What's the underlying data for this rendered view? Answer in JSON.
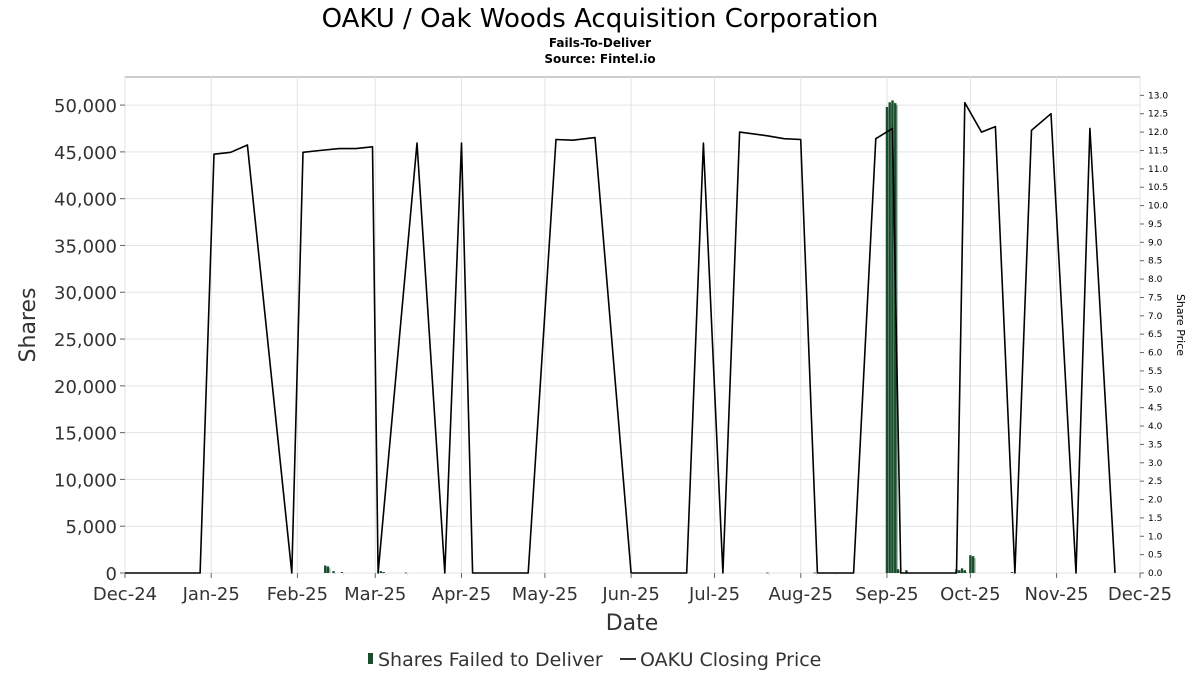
{
  "chart_data": {
    "type": "bar",
    "title": "OAKU / Oak Woods Acquisition Corporation",
    "subtitle": "Fails-To-Deliver",
    "source": "Source: Fintel.io",
    "xlabel": "Date",
    "ylabel": "Shares",
    "y2label": "Share Price",
    "xlim": [
      "2024-12-01",
      "2025-12-01"
    ],
    "ylim": [
      0,
      53000
    ],
    "y2lim": [
      0,
      13.5
    ],
    "x_ticks": [
      "Dec-24",
      "Jan-25",
      "Feb-25",
      "Mar-25",
      "Apr-25",
      "May-25",
      "Jun-25",
      "Jul-25",
      "Aug-25",
      "Sep-25",
      "Oct-25",
      "Nov-25",
      "Dec-25"
    ],
    "x_tick_dates": [
      "2024-12-01",
      "2025-01-01",
      "2025-02-01",
      "2025-03-01",
      "2025-04-01",
      "2025-05-01",
      "2025-06-01",
      "2025-07-01",
      "2025-08-01",
      "2025-09-01",
      "2025-10-01",
      "2025-11-01",
      "2025-12-01"
    ],
    "y_ticks": [
      0,
      5000,
      10000,
      15000,
      20000,
      25000,
      30000,
      35000,
      40000,
      45000,
      50000
    ],
    "y_tick_labels": [
      "0",
      "5,000",
      "10,000",
      "15,000",
      "20,000",
      "25,000",
      "30,000",
      "35,000",
      "40,000",
      "45,000",
      "50,000"
    ],
    "y2_ticks": [
      0,
      0.5,
      1,
      1.5,
      2,
      2.5,
      3,
      3.5,
      4,
      4.5,
      5,
      5.5,
      6,
      6.5,
      7,
      7.5,
      8,
      8.5,
      9,
      9.5,
      10,
      10.5,
      11,
      11.5,
      12,
      12.5,
      13
    ],
    "y2_tick_labels": [
      "0.0",
      "0.5",
      "1.0",
      "1.5",
      "2.0",
      "2.5",
      "3.0",
      "3.5",
      "4.0",
      "4.5",
      "5.0",
      "5.5",
      "6.0",
      "6.5",
      "7.0",
      "7.5",
      "8.0",
      "8.5",
      "9.0",
      "9.5",
      "10.0",
      "10.5",
      "11.0",
      "11.5",
      "12.0",
      "12.5",
      "13.0"
    ],
    "grid": true,
    "legend_position": "bottom",
    "series": [
      {
        "name": "Shares Failed to Deliver",
        "type": "bar",
        "axis": "left",
        "color": "#1a4d2e",
        "x": [
          "2025-02-11",
          "2025-02-12",
          "2025-02-14",
          "2025-02-17",
          "2025-03-03",
          "2025-03-04",
          "2025-03-12",
          "2025-07-20",
          "2025-08-06",
          "2025-08-13",
          "2025-09-01",
          "2025-09-02",
          "2025-09-03",
          "2025-09-04",
          "2025-09-05",
          "2025-09-08",
          "2025-09-26",
          "2025-09-27",
          "2025-09-28",
          "2025-09-29",
          "2025-10-01",
          "2025-10-02",
          "2025-10-16"
        ],
        "values": [
          800,
          700,
          200,
          100,
          200,
          100,
          50,
          50,
          50,
          50,
          49800,
          50300,
          50500,
          50200,
          400,
          300,
          400,
          300,
          500,
          300,
          1900,
          1800,
          100
        ]
      },
      {
        "name": "OAKU Closing Price",
        "type": "line",
        "axis": "right",
        "color": "#000000",
        "x": [
          "2024-12-01",
          "2024-12-28",
          "2025-01-02",
          "2025-01-08",
          "2025-01-14",
          "2025-01-30",
          "2025-02-03",
          "2025-02-09",
          "2025-02-16",
          "2025-02-22",
          "2025-02-28",
          "2025-03-02",
          "2025-03-16",
          "2025-03-26",
          "2025-04-01",
          "2025-04-05",
          "2025-04-15",
          "2025-04-25",
          "2025-05-05",
          "2025-05-11",
          "2025-05-19",
          "2025-06-01",
          "2025-06-10",
          "2025-06-15",
          "2025-06-21",
          "2025-06-27",
          "2025-07-04",
          "2025-07-10",
          "2025-07-20",
          "2025-07-26",
          "2025-08-01",
          "2025-08-07",
          "2025-08-14",
          "2025-08-20",
          "2025-08-28",
          "2025-09-03",
          "2025-09-06",
          "2025-09-10",
          "2025-09-20",
          "2025-09-26",
          "2025-09-29",
          "2025-10-05",
          "2025-10-10",
          "2025-10-17",
          "2025-10-23",
          "2025-10-30",
          "2025-11-08",
          "2025-11-13",
          "2025-11-22"
        ],
        "values": [
          0,
          0,
          11.4,
          11.45,
          11.65,
          0,
          11.45,
          11.5,
          11.55,
          11.55,
          11.6,
          0,
          11.7,
          0,
          11.7,
          0,
          0,
          0,
          11.8,
          11.78,
          11.85,
          0,
          0,
          0,
          0,
          11.7,
          0,
          12.0,
          11.9,
          11.82,
          11.8,
          0,
          0,
          0,
          11.82,
          12.1,
          0,
          0,
          0,
          0,
          12.8,
          12.0,
          12.15,
          0,
          12.05,
          12.5,
          0,
          12.1,
          0
        ]
      }
    ]
  }
}
